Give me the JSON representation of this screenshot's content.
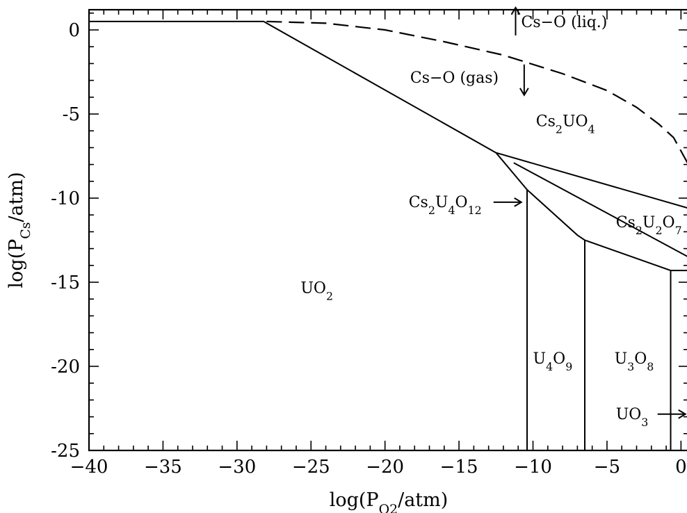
{
  "chart_data": {
    "type": "line",
    "title": "",
    "xlabel": "log(P{O_2}/atm)",
    "ylabel": "log(P{Cs}/atm)",
    "xlim": [
      -40,
      0.5
    ],
    "ylim": [
      -25,
      1.2
    ],
    "grid": false,
    "x_ticks": [
      -40,
      -35,
      -30,
      -25,
      -20,
      -15,
      -10,
      -5,
      0
    ],
    "y_ticks": [
      0,
      -5,
      -10,
      -15,
      -20,
      -25
    ],
    "x_tick_labels": [
      "−40",
      "−35",
      "−30",
      "−25",
      "−20",
      "−15",
      "−10",
      "−5",
      "0"
    ],
    "y_tick_labels": [
      "0",
      "-5",
      "-10",
      "-15",
      "-20",
      "-25"
    ],
    "series": [
      {
        "style": "solid",
        "x": [
          -40,
          -28.2,
          -12.5
        ],
        "y": [
          0.5,
          0.5,
          -7.3
        ]
      },
      {
        "style": "solid",
        "x": [
          -12.5,
          0.5
        ],
        "y": [
          -7.3,
          -10.6
        ]
      },
      {
        "style": "solid",
        "x": [
          -11.3,
          0.5
        ],
        "y": [
          -7.9,
          -13.5
        ]
      },
      {
        "style": "solid",
        "x": [
          -12.5,
          -10.4,
          -7.0,
          -6.5,
          -0.7,
          0.5
        ],
        "y": [
          -7.3,
          -9.5,
          -12.2,
          -12.5,
          -14.3,
          -14.3
        ]
      },
      {
        "style": "solid",
        "x": [
          -10.4,
          -10.4
        ],
        "y": [
          -9.5,
          -25
        ]
      },
      {
        "style": "solid",
        "x": [
          -6.5,
          -6.5
        ],
        "y": [
          -12.5,
          -25
        ]
      },
      {
        "style": "solid",
        "x": [
          -0.7,
          -0.7
        ],
        "y": [
          -14.3,
          -25
        ]
      },
      {
        "style": "dashed",
        "x": [
          -28,
          -24,
          -20,
          -16,
          -12,
          -8,
          -5,
          -3,
          -1.5,
          -0.5,
          0.5
        ],
        "y": [
          0.5,
          0.4,
          0.0,
          -0.7,
          -1.5,
          -2.6,
          -3.6,
          -4.6,
          -5.6,
          -6.4,
          -8.0
        ]
      }
    ],
    "annotations": [
      {
        "text": "Cs−O (liq.)",
        "base": "Cs−O (liq.)",
        "x": -10.8,
        "y": 0.5,
        "arrow": "up"
      },
      {
        "text": "Cs−O (gas)",
        "base": "Cs−O (gas)",
        "x": -18.3,
        "y": -2.8,
        "arrow": "down"
      },
      {
        "text": "Cs2UO4",
        "base": "Cs",
        "sub1": "2",
        "base2": "UO",
        "sub2": "4",
        "x": -9.8,
        "y": -5.4
      },
      {
        "text": "Cs2U4O12",
        "base": "Cs",
        "sub1": "2",
        "base2": "U",
        "sub2": "4",
        "base3": "O",
        "sub3": "12",
        "x": -18.4,
        "y": -10.2,
        "arrow": "right"
      },
      {
        "text": "Cs2U2O7",
        "base": "Cs",
        "sub1": "2",
        "base2": "U",
        "sub2": "2",
        "base3": "O",
        "sub3": "7",
        "x": -4.4,
        "y": -11.4
      },
      {
        "text": "UO2",
        "base": "UO",
        "sub1": "2",
        "x": -25.7,
        "y": -15.3
      },
      {
        "text": "U4O9",
        "base": "U",
        "sub1": "4",
        "base2": "O",
        "sub2": "9",
        "x": -10.0,
        "y": -19.5
      },
      {
        "text": "U3O8",
        "base": "U",
        "sub1": "3",
        "base2": "O",
        "sub2": "8",
        "x": -4.5,
        "y": -19.5
      },
      {
        "text": "UO3",
        "base": "UO",
        "sub1": "3",
        "x": -4.4,
        "y": -22.8,
        "arrow": "right"
      }
    ]
  }
}
